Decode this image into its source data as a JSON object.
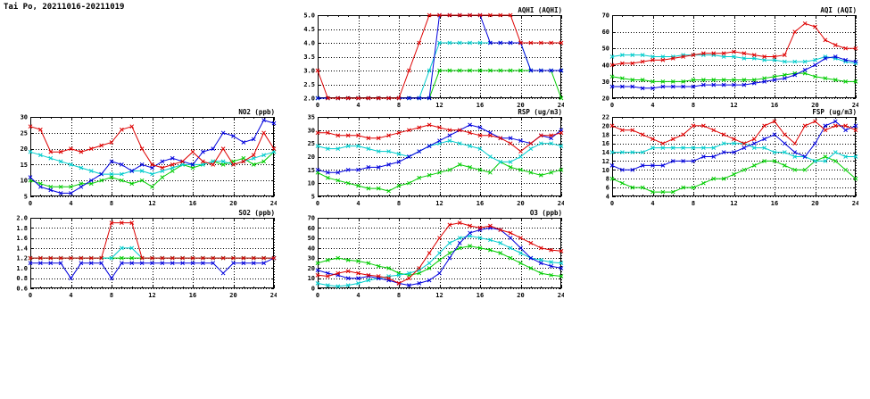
{
  "page": {
    "title": "Tai Po, 20211016-20211019"
  },
  "colors": {
    "red": "#dd0000",
    "blue": "#0000dd",
    "cyan": "#00cccc",
    "green": "#00cc00",
    "axis": "#000000",
    "background": "#ffffff"
  },
  "chart_data": [
    {
      "id": "aqhi",
      "type": "line",
      "title": "AQHI (AQHI)",
      "xlabel": "",
      "ylabel": "",
      "x_unit": "hour of day",
      "xlim": [
        0,
        24
      ],
      "ylim": [
        2,
        5
      ],
      "xticks": [
        0,
        4,
        8,
        12,
        16,
        20,
        24
      ],
      "yticks": [
        2,
        2.5,
        3,
        3.5,
        4,
        4.5,
        5
      ],
      "ytick_labels": [
        "2.0",
        "2.5",
        "3.0",
        "3.5",
        "4.0",
        "4.5",
        "5.0"
      ],
      "grid": true,
      "legend": false,
      "series": [
        {
          "name": "green",
          "color": "#00cc00",
          "values": [
            2,
            2,
            2,
            2,
            2,
            2,
            2,
            2,
            2,
            2,
            2,
            2,
            3,
            3,
            3,
            3,
            3,
            3,
            3,
            3,
            3,
            3,
            3,
            3,
            2
          ]
        },
        {
          "name": "cyan",
          "color": "#00cccc",
          "values": [
            2,
            2,
            2,
            2,
            2,
            2,
            2,
            2,
            2,
            2,
            2,
            3,
            4,
            4,
            4,
            4,
            4,
            4,
            4,
            4,
            4,
            3,
            3,
            3,
            3
          ]
        },
        {
          "name": "blue",
          "color": "#0000dd",
          "values": [
            2,
            2,
            2,
            2,
            2,
            2,
            2,
            2,
            2,
            2,
            2,
            2,
            5,
            5,
            5,
            5,
            5,
            4,
            4,
            4,
            4,
            3,
            3,
            3,
            3
          ]
        },
        {
          "name": "red",
          "color": "#dd0000",
          "values": [
            3,
            2,
            2,
            2,
            2,
            2,
            2,
            2,
            2,
            3,
            4,
            5,
            5,
            5,
            5,
            5,
            5,
            5,
            5,
            5,
            4,
            4,
            4,
            4,
            4
          ]
        }
      ]
    },
    {
      "id": "aqi",
      "type": "line",
      "title": "AQI (AQI)",
      "xlabel": "",
      "ylabel": "",
      "x_unit": "hour of day",
      "xlim": [
        0,
        24
      ],
      "ylim": [
        20,
        70
      ],
      "xticks": [
        0,
        4,
        8,
        12,
        16,
        20,
        24
      ],
      "yticks": [
        20,
        30,
        40,
        50,
        60,
        70
      ],
      "ytick_labels": [
        "20",
        "30",
        "40",
        "50",
        "60",
        "70"
      ],
      "grid": true,
      "legend": false,
      "series": [
        {
          "name": "green",
          "color": "#00cc00",
          "values": [
            33,
            32,
            31,
            31,
            30,
            30,
            30,
            30,
            31,
            31,
            31,
            31,
            31,
            31,
            31,
            32,
            33,
            34,
            35,
            35,
            33,
            32,
            31,
            30,
            30
          ]
        },
        {
          "name": "cyan",
          "color": "#00cccc",
          "values": [
            45,
            46,
            46,
            46,
            45,
            45,
            45,
            46,
            46,
            46,
            46,
            45,
            45,
            44,
            44,
            43,
            43,
            42,
            42,
            42,
            43,
            45,
            44,
            42,
            41
          ]
        },
        {
          "name": "blue",
          "color": "#0000dd",
          "values": [
            27,
            27,
            27,
            26,
            26,
            27,
            27,
            27,
            27,
            28,
            28,
            28,
            28,
            28,
            29,
            30,
            31,
            32,
            34,
            37,
            40,
            44,
            45,
            43,
            42
          ]
        },
        {
          "name": "red",
          "color": "#dd0000",
          "values": [
            40,
            41,
            41,
            42,
            43,
            43,
            44,
            45,
            46,
            47,
            47,
            47,
            48,
            47,
            46,
            45,
            45,
            46,
            60,
            65,
            63,
            55,
            52,
            50,
            50
          ]
        }
      ]
    },
    {
      "id": "no2",
      "type": "line",
      "title": "NO2 (ppb)",
      "xlabel": "",
      "ylabel": "",
      "x_unit": "hour of day",
      "xlim": [
        0,
        24
      ],
      "ylim": [
        5,
        30
      ],
      "xticks": [
        0,
        4,
        8,
        12,
        16,
        20,
        24
      ],
      "yticks": [
        5,
        10,
        15,
        20,
        25,
        30
      ],
      "ytick_labels": [
        "5",
        "10",
        "15",
        "20",
        "25",
        "30"
      ],
      "grid": true,
      "legend": false,
      "series": [
        {
          "name": "green",
          "color": "#00cc00",
          "values": [
            10,
            9,
            8,
            8,
            8,
            9,
            9,
            10,
            11,
            10,
            9,
            10,
            8,
            11,
            13,
            15,
            14,
            15,
            16,
            15,
            16,
            17,
            15,
            16,
            19
          ]
        },
        {
          "name": "cyan",
          "color": "#00cccc",
          "values": [
            19,
            18,
            17,
            16,
            15,
            14,
            13,
            12,
            12,
            12,
            13,
            13,
            12,
            13,
            14,
            15,
            15,
            15,
            16,
            16,
            15,
            16,
            17,
            18,
            19
          ]
        },
        {
          "name": "blue",
          "color": "#0000dd",
          "values": [
            11,
            8,
            7,
            6,
            6,
            8,
            10,
            12,
            16,
            15,
            13,
            15,
            14,
            16,
            17,
            16,
            15,
            19,
            20,
            25,
            24,
            22,
            23,
            29,
            28
          ]
        },
        {
          "name": "red",
          "color": "#dd0000",
          "values": [
            27,
            26,
            19,
            19,
            20,
            19,
            20,
            21,
            22,
            26,
            27,
            20,
            15,
            14,
            15,
            16,
            19,
            16,
            15,
            20,
            15,
            16,
            18,
            25,
            20
          ]
        }
      ]
    },
    {
      "id": "rsp",
      "type": "line",
      "title": "RSP (ug/m3)",
      "xlabel": "",
      "ylabel": "",
      "x_unit": "hour of day",
      "xlim": [
        0,
        24
      ],
      "ylim": [
        5,
        35
      ],
      "xticks": [
        0,
        4,
        8,
        12,
        16,
        20,
        24
      ],
      "yticks": [
        5,
        10,
        15,
        20,
        25,
        30,
        35
      ],
      "ytick_labels": [
        "5",
        "10",
        "15",
        "20",
        "25",
        "30",
        "35"
      ],
      "grid": true,
      "legend": false,
      "series": [
        {
          "name": "green",
          "color": "#00cc00",
          "values": [
            14,
            12,
            11,
            10,
            9,
            8,
            8,
            7,
            9,
            10,
            12,
            13,
            14,
            15,
            17,
            16,
            15,
            14,
            18,
            16,
            15,
            14,
            13,
            14,
            15
          ]
        },
        {
          "name": "cyan",
          "color": "#00cccc",
          "values": [
            24,
            23,
            23,
            24,
            24,
            23,
            22,
            22,
            21,
            20,
            22,
            24,
            25,
            26,
            25,
            24,
            23,
            20,
            18,
            18,
            20,
            23,
            25,
            25,
            24
          ]
        },
        {
          "name": "blue",
          "color": "#0000dd",
          "values": [
            15,
            14,
            14,
            15,
            15,
            16,
            16,
            17,
            18,
            20,
            22,
            24,
            26,
            28,
            30,
            32,
            31,
            29,
            27,
            27,
            26,
            25,
            28,
            27,
            30
          ]
        },
        {
          "name": "red",
          "color": "#dd0000",
          "values": [
            29,
            29,
            28,
            28,
            28,
            27,
            27,
            28,
            29,
            30,
            31,
            32,
            31,
            30,
            30,
            29,
            28,
            28,
            27,
            25,
            22,
            25,
            28,
            28,
            29
          ]
        }
      ]
    },
    {
      "id": "fsp",
      "type": "line",
      "title": "FSP (ug/m3)",
      "xlabel": "",
      "ylabel": "",
      "x_unit": "hour of day",
      "xlim": [
        0,
        24
      ],
      "ylim": [
        4,
        22
      ],
      "xticks": [
        0,
        4,
        8,
        12,
        16,
        20,
        24
      ],
      "yticks": [
        4,
        6,
        8,
        10,
        12,
        14,
        16,
        18,
        20,
        22
      ],
      "ytick_labels": [
        "4",
        "6",
        "8",
        "10",
        "12",
        "14",
        "16",
        "18",
        "20",
        "22"
      ],
      "grid": true,
      "legend": false,
      "series": [
        {
          "name": "green",
          "color": "#00cc00",
          "values": [
            8,
            7,
            6,
            6,
            5,
            5,
            5,
            6,
            6,
            7,
            8,
            8,
            9,
            10,
            11,
            12,
            12,
            11,
            10,
            10,
            12,
            13,
            12,
            10,
            8
          ]
        },
        {
          "name": "cyan",
          "color": "#00cccc",
          "values": [
            14,
            14,
            14,
            14,
            15,
            15,
            15,
            15,
            15,
            15,
            15,
            16,
            16,
            16,
            15,
            15,
            14,
            14,
            13,
            13,
            12,
            12,
            14,
            13,
            13
          ]
        },
        {
          "name": "blue",
          "color": "#0000dd",
          "values": [
            11,
            10,
            10,
            11,
            11,
            11,
            12,
            12,
            12,
            13,
            13,
            14,
            14,
            15,
            16,
            17,
            18,
            16,
            14,
            13,
            16,
            20,
            21,
            19,
            20
          ]
        },
        {
          "name": "red",
          "color": "#dd0000",
          "values": [
            20,
            19,
            19,
            18,
            17,
            16,
            17,
            18,
            20,
            20,
            19,
            18,
            17,
            16,
            17,
            20,
            21,
            18,
            16,
            20,
            21,
            19,
            20,
            20,
            19
          ]
        }
      ]
    },
    {
      "id": "so2",
      "type": "line",
      "title": "SO2 (ppb)",
      "xlabel": "",
      "ylabel": "",
      "x_unit": "hour of day",
      "xlim": [
        0,
        24
      ],
      "ylim": [
        0.6,
        2.0
      ],
      "xticks": [
        0,
        4,
        8,
        12,
        16,
        20,
        24
      ],
      "yticks": [
        0.6,
        0.8,
        1.0,
        1.2,
        1.4,
        1.6,
        1.8,
        2.0
      ],
      "ytick_labels": [
        "0.6",
        "0.8",
        "1.0",
        "1.2",
        "1.4",
        "1.6",
        "1.8",
        "2.0"
      ],
      "grid": true,
      "legend": false,
      "series": [
        {
          "name": "green",
          "color": "#00cc00",
          "values": [
            1.2,
            1.2,
            1.2,
            1.2,
            1.2,
            1.2,
            1.2,
            1.2,
            1.2,
            1.2,
            1.2,
            1.2,
            1.2,
            1.2,
            1.2,
            1.2,
            1.2,
            1.2,
            1.2,
            1.2,
            1.2,
            1.2,
            1.2,
            1.2,
            1.2
          ]
        },
        {
          "name": "cyan",
          "color": "#00cccc",
          "values": [
            1.2,
            1.2,
            1.2,
            1.2,
            1.2,
            1.2,
            1.2,
            1.2,
            1.2,
            1.4,
            1.4,
            1.2,
            1.2,
            1.2,
            1.2,
            1.2,
            1.2,
            1.2,
            1.2,
            1.2,
            1.2,
            1.2,
            1.2,
            1.2,
            1.2
          ]
        },
        {
          "name": "blue",
          "color": "#0000dd",
          "values": [
            1.1,
            1.1,
            1.1,
            1.1,
            0.8,
            1.1,
            1.1,
            1.1,
            0.8,
            1.1,
            1.1,
            1.1,
            1.1,
            1.1,
            1.1,
            1.1,
            1.1,
            1.1,
            1.1,
            0.9,
            1.1,
            1.1,
            1.1,
            1.1,
            1.2
          ]
        },
        {
          "name": "red",
          "color": "#dd0000",
          "values": [
            1.2,
            1.2,
            1.2,
            1.2,
            1.2,
            1.2,
            1.2,
            1.2,
            1.9,
            1.9,
            1.9,
            1.2,
            1.2,
            1.2,
            1.2,
            1.2,
            1.2,
            1.2,
            1.2,
            1.2,
            1.2,
            1.2,
            1.2,
            1.2,
            1.2
          ]
        }
      ]
    },
    {
      "id": "o3",
      "type": "line",
      "title": "O3 (ppb)",
      "xlabel": "",
      "ylabel": "",
      "x_unit": "hour of day",
      "xlim": [
        0,
        24
      ],
      "ylim": [
        0,
        70
      ],
      "xticks": [
        0,
        4,
        8,
        12,
        16,
        20,
        24
      ],
      "yticks": [
        0,
        10,
        20,
        30,
        40,
        50,
        60,
        70
      ],
      "ytick_labels": [
        "0",
        "10",
        "20",
        "30",
        "40",
        "50",
        "60",
        "70"
      ],
      "grid": true,
      "legend": false,
      "series": [
        {
          "name": "green",
          "color": "#00cc00",
          "values": [
            25,
            28,
            30,
            28,
            27,
            25,
            22,
            20,
            15,
            13,
            15,
            20,
            28,
            35,
            40,
            42,
            40,
            38,
            35,
            30,
            25,
            20,
            15,
            13,
            12
          ]
        },
        {
          "name": "cyan",
          "color": "#00cccc",
          "values": [
            5,
            3,
            2,
            3,
            5,
            8,
            10,
            12,
            13,
            15,
            18,
            25,
            35,
            45,
            50,
            52,
            50,
            48,
            45,
            40,
            35,
            30,
            28,
            26,
            25
          ]
        },
        {
          "name": "blue",
          "color": "#0000dd",
          "values": [
            18,
            15,
            13,
            10,
            10,
            12,
            10,
            8,
            5,
            3,
            5,
            8,
            15,
            30,
            45,
            55,
            58,
            60,
            58,
            50,
            40,
            30,
            25,
            22,
            20
          ]
        },
        {
          "name": "red",
          "color": "#dd0000",
          "values": [
            13,
            12,
            15,
            17,
            15,
            13,
            12,
            10,
            5,
            10,
            20,
            35,
            50,
            63,
            65,
            62,
            60,
            62,
            58,
            55,
            50,
            45,
            40,
            38,
            37
          ]
        }
      ]
    }
  ]
}
